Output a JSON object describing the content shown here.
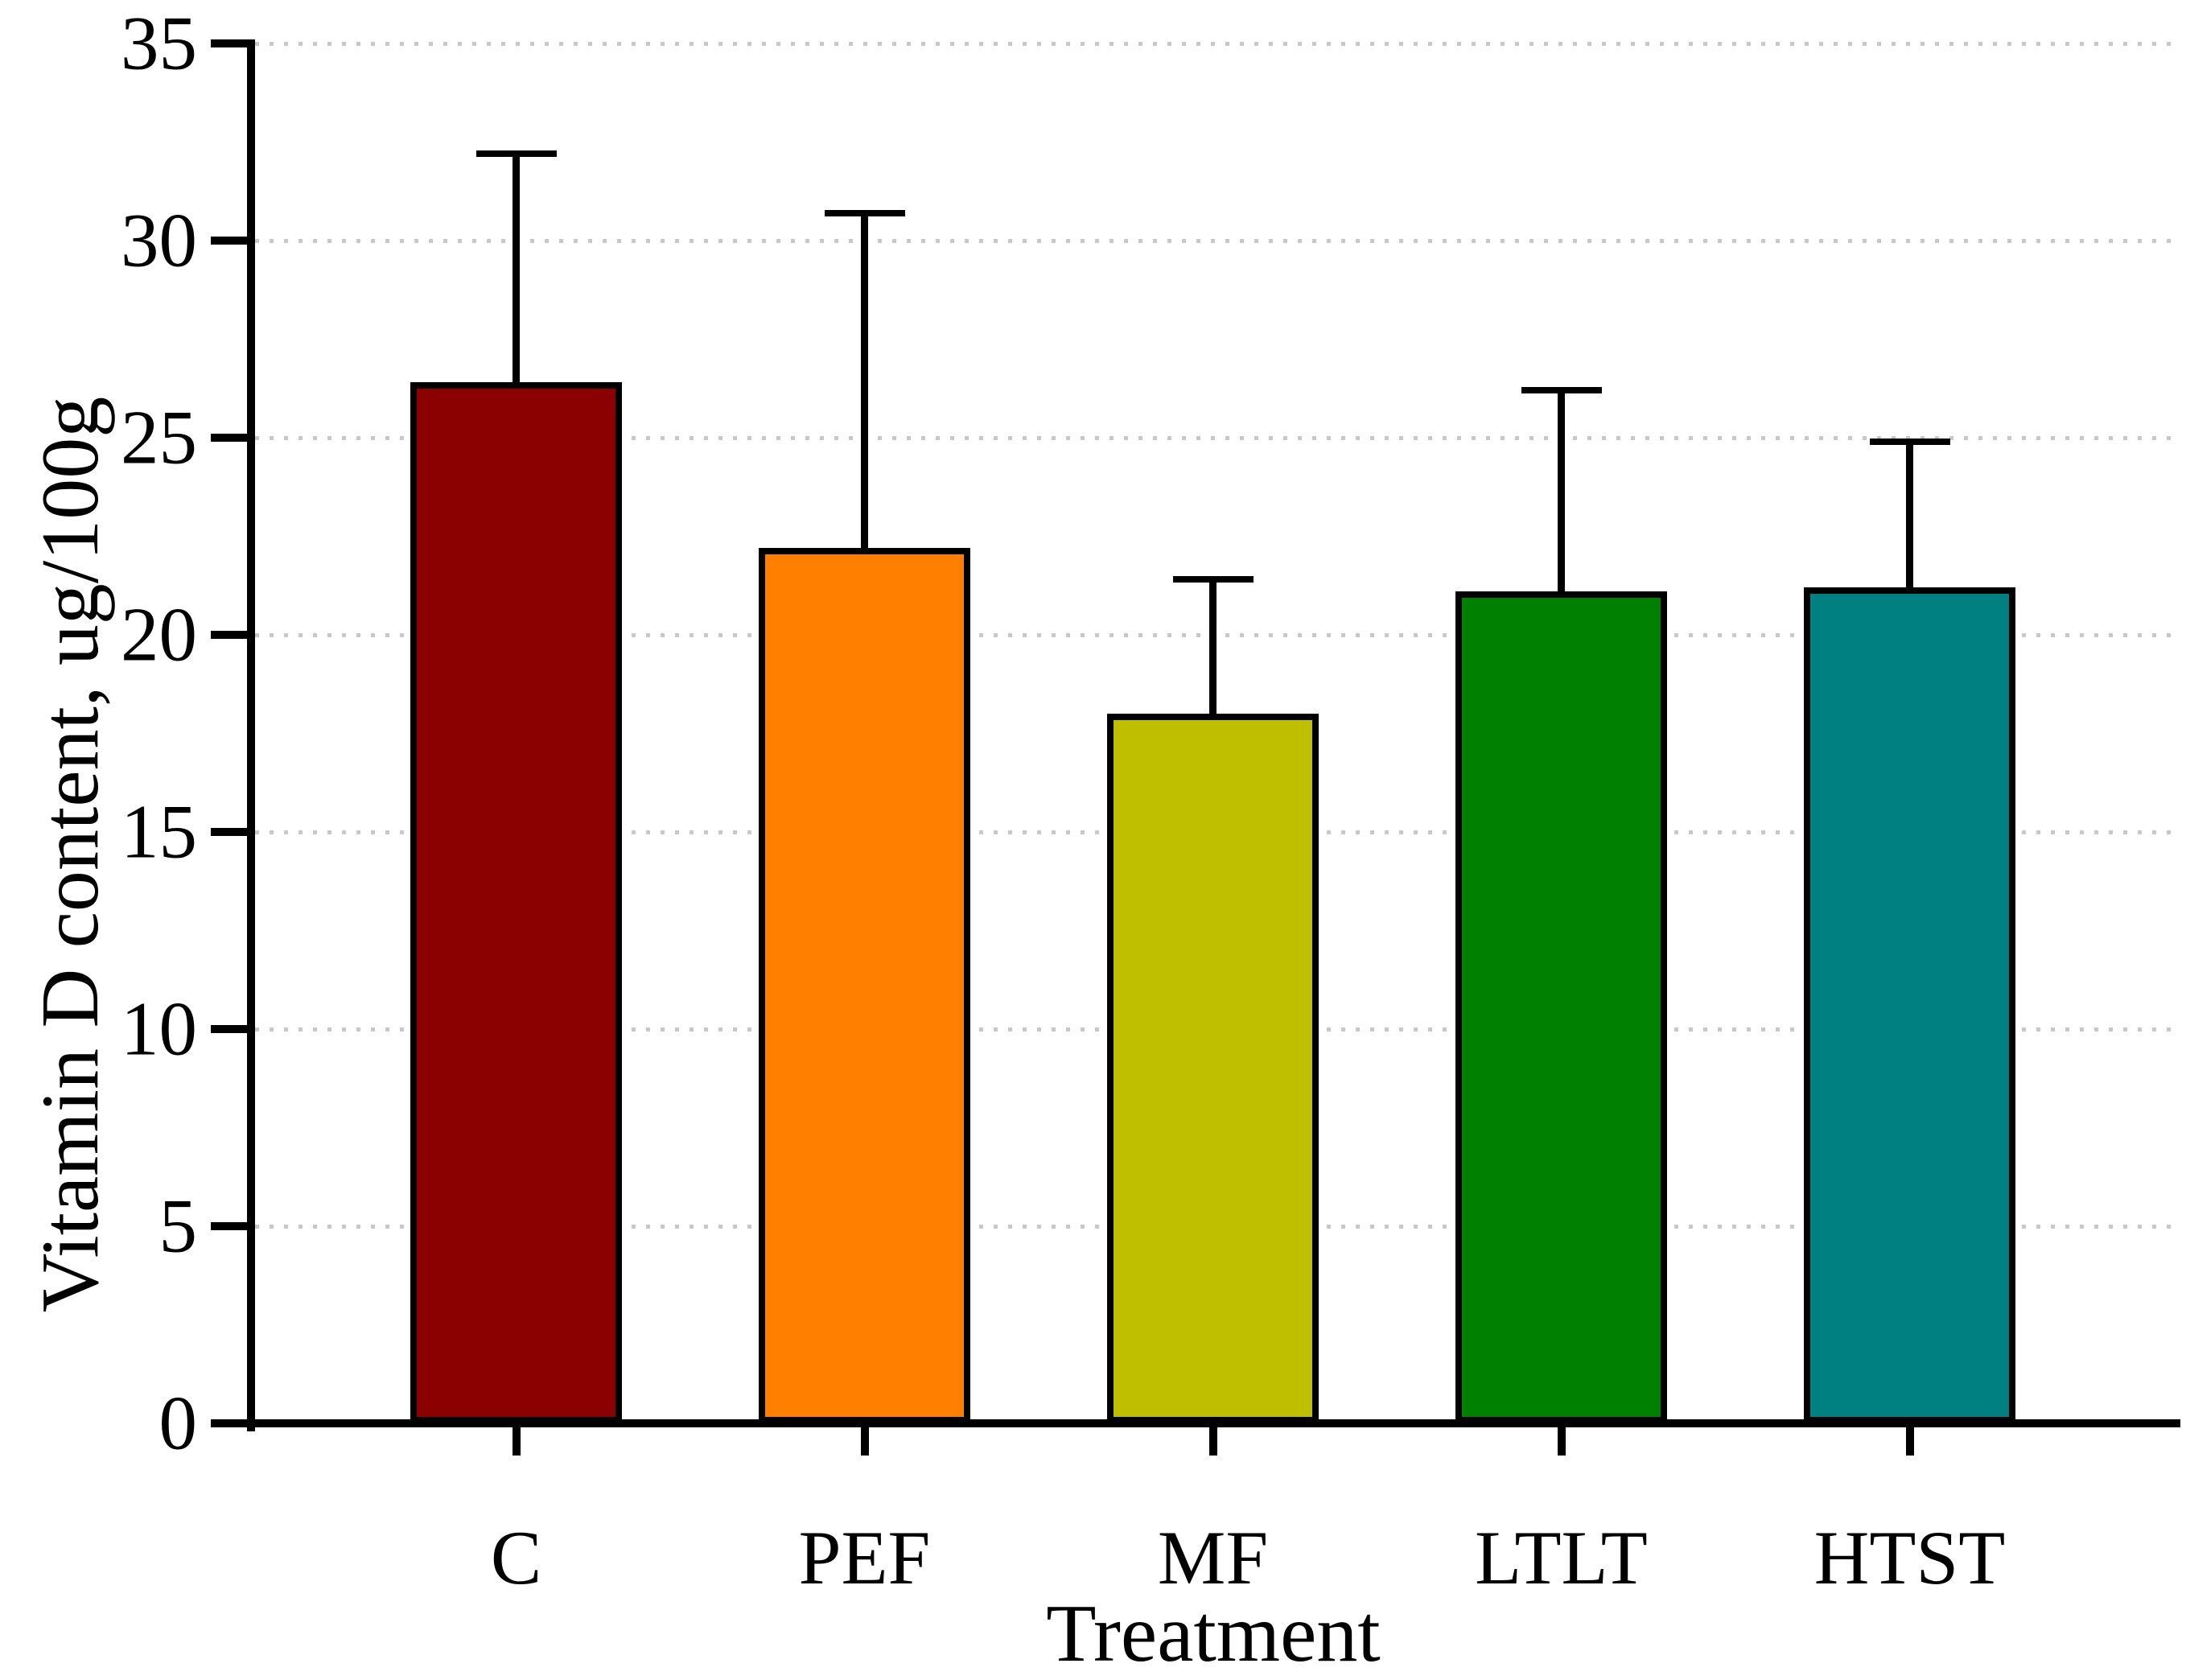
{
  "figure": {
    "background": "#ffffff",
    "axis_color": "#000000",
    "gridline_color": "#c8c8c8"
  },
  "chart_data": {
    "type": "bar",
    "title": "",
    "xlabel": "Treatment",
    "ylabel": "Vitamin D content, ug/100g",
    "categories": [
      "C",
      "PEF",
      "MF",
      "LTLT",
      "HTST"
    ],
    "series": [
      {
        "name": "Vitamin D content",
        "values": [
          26.4,
          22.2,
          18.0,
          21.1,
          21.2
        ],
        "errors_plus": [
          5.8,
          8.5,
          3.4,
          5.1,
          3.7
        ]
      }
    ],
    "bar_colors": [
      "#8B0000",
      "#FF8000",
      "#BFBF00",
      "#008000",
      "#008080"
    ],
    "bar_edge_color": "#000000",
    "ylim": [
      0,
      35
    ],
    "yticks": [
      0,
      5,
      10,
      15,
      20,
      25,
      30,
      35
    ],
    "grid": "dotted horizontal lines at major y ticks",
    "legend": "none",
    "error_bar_direction": "plus-only"
  }
}
